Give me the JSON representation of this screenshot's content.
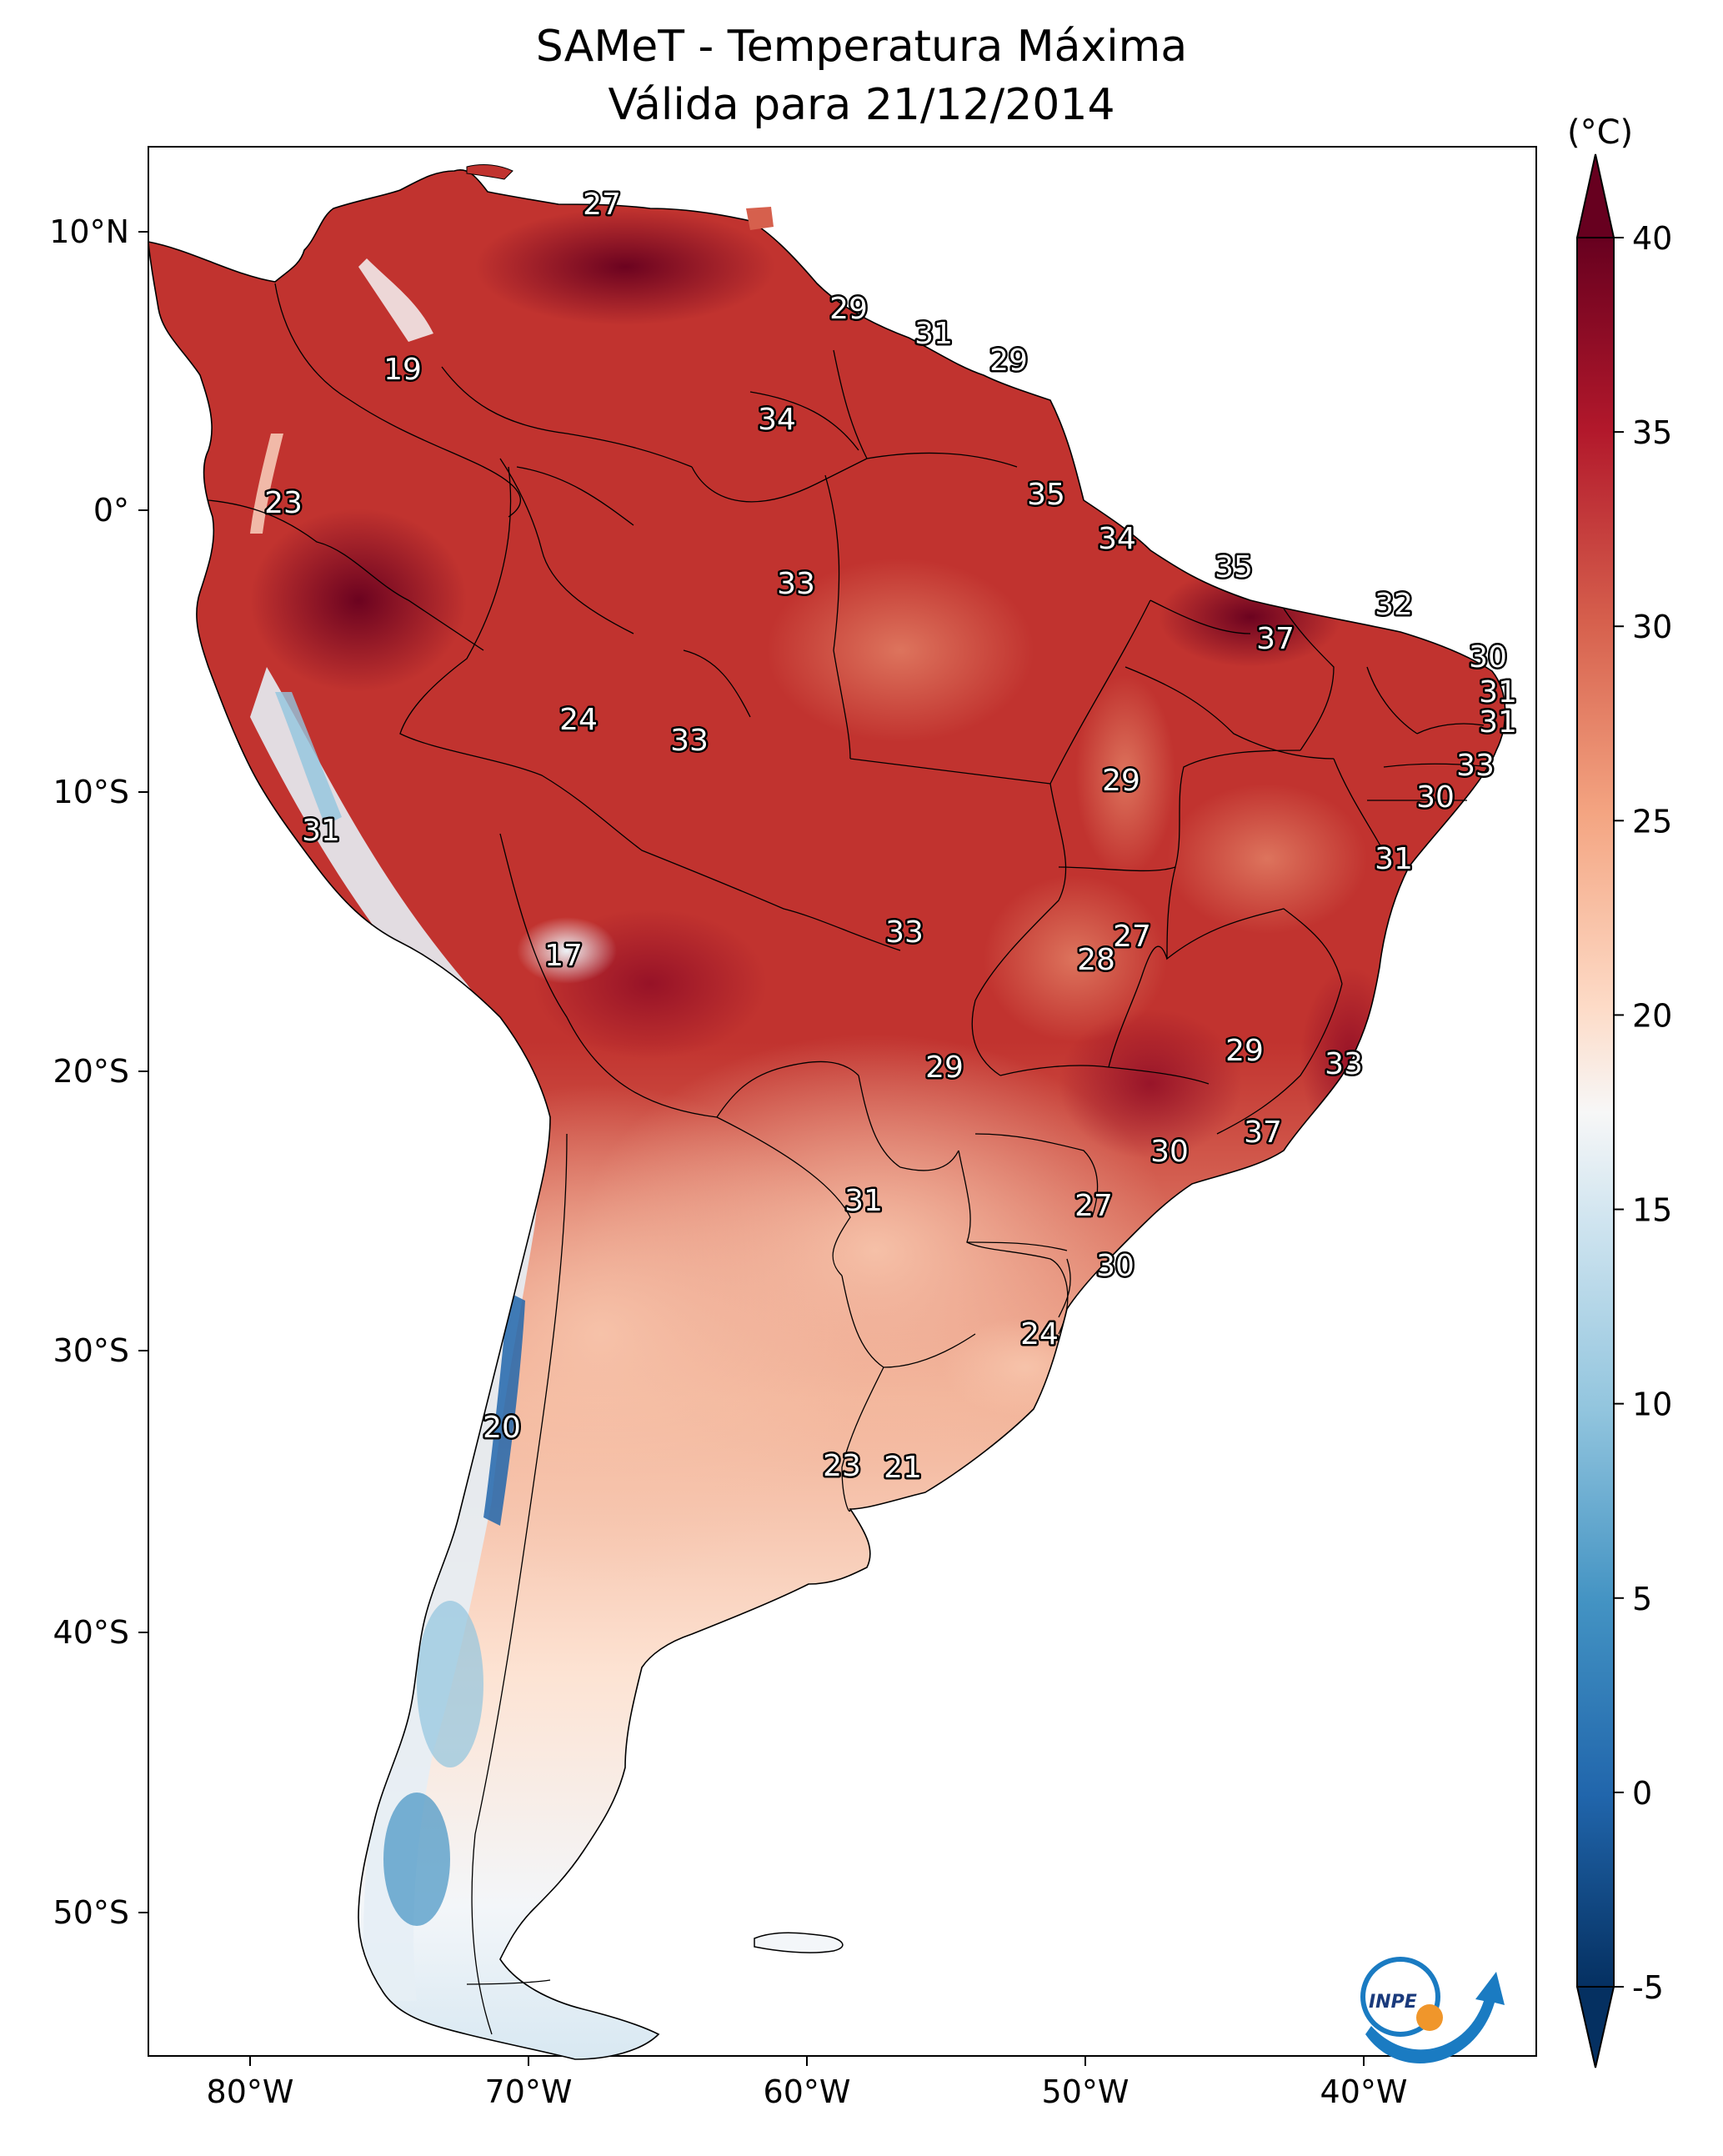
{
  "title": {
    "line1": "SAMeT - Temperatura Máxima",
    "line2": "Válida para 21/12/2014"
  },
  "colorbar": {
    "unit": "(°C)",
    "ticks": [
      "40",
      "35",
      "30",
      "25",
      "20",
      "15",
      "10",
      "5",
      "0",
      "-5"
    ],
    "range": [
      -5,
      40
    ],
    "colors": {
      "c40": "#67001f",
      "c35": "#b2182b",
      "c30": "#d6604d",
      "c25": "#f4a582",
      "c20": "#fddbc7",
      "c17": "#f7f7f7",
      "c13": "#d1e5f0",
      "c8": "#92c5de",
      "c3": "#4393c3",
      "c0": "#2166ac",
      "cm5": "#053061"
    }
  },
  "axes": {
    "lat_ticks": [
      "10°N",
      "0°",
      "10°S",
      "20°S",
      "30°S",
      "40°S",
      "50°S"
    ],
    "lon_ticks": [
      "80°W",
      "70°W",
      "60°W",
      "50°W",
      "40°W"
    ]
  },
  "contour_labels": [
    "27",
    "29",
    "31",
    "29",
    "19",
    "34",
    "23",
    "35",
    "34",
    "35",
    "33",
    "32",
    "37",
    "30",
    "31",
    "31",
    "33",
    "30",
    "31",
    "29",
    "33",
    "24",
    "31",
    "27",
    "17",
    "28",
    "33",
    "29",
    "29",
    "33",
    "37",
    "30",
    "31",
    "27",
    "30",
    "24",
    "20",
    "23",
    "21"
  ],
  "logo": {
    "text": "INPE"
  }
}
